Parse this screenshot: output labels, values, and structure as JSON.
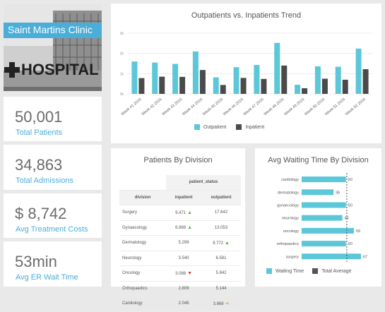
{
  "clinic": {
    "name": "Saint Martins Clinic",
    "sign": "HOSPITAL"
  },
  "kpis": [
    {
      "value": "50,001",
      "label": "Total Patients"
    },
    {
      "value": "34,863",
      "label": "Total Admissions"
    },
    {
      "value": "$ 8,742",
      "label": "Avg Treatment Costs"
    },
    {
      "value": "53min",
      "label": "Avg ER Wait Time"
    }
  ],
  "colors": {
    "outpatient": "#5bc7d8",
    "inpatient": "#4a4a4a",
    "accent": "#4aaed8"
  },
  "chart_data": [
    {
      "type": "bar",
      "title": "Outpatients vs. Inpatients Trend",
      "categories": [
        "Week 41 2016",
        "Week 42 2016",
        "Week 43 2016",
        "Week 44 2016",
        "Week 45 2016",
        "Week 46 2016",
        "Week 47 2016",
        "Week 48 2016",
        "Week 49 2016",
        "Week 50 2016",
        "Week 51 2016",
        "Week 52 2016"
      ],
      "series": [
        {
          "name": "Outpatient",
          "values": [
            1600,
            1550,
            1480,
            2100,
            820,
            1320,
            1430,
            2520,
            450,
            1360,
            1340,
            2240
          ]
        },
        {
          "name": "Inpatient",
          "values": [
            780,
            850,
            840,
            1180,
            440,
            790,
            740,
            1400,
            280,
            750,
            700,
            1220
          ]
        }
      ],
      "yticks": [
        "0k",
        "1k",
        "2k",
        "3k"
      ],
      "ylim": [
        0,
        3000
      ],
      "legend": "bottom"
    },
    {
      "type": "table",
      "title": "Patients By Division",
      "header_group": "patient_status",
      "columns": [
        "division",
        "inpatient",
        "outpatient"
      ],
      "rows": [
        {
          "division": "Surgery",
          "inpatient": "9.471",
          "in_arrow": "up",
          "outpatient": "17.642",
          "out_arrow": ""
        },
        {
          "division": "Gynaecology",
          "inpatient": "6.869",
          "in_arrow": "up",
          "outpatient": "13.053",
          "out_arrow": ""
        },
        {
          "division": "Dermatology",
          "inpatient": "5.299",
          "in_arrow": "",
          "outpatient": "9.772",
          "out_arrow": "up"
        },
        {
          "division": "Neurology",
          "inpatient": "3.540",
          "in_arrow": "",
          "outpatient": "6.581",
          "out_arrow": ""
        },
        {
          "division": "Oncology",
          "inpatient": "3.088",
          "in_arrow": "down",
          "outpatient": "5.842",
          "out_arrow": ""
        },
        {
          "division": "Orthopaedics",
          "inpatient": "2.809",
          "in_arrow": "",
          "outpatient": "5.144",
          "out_arrow": ""
        },
        {
          "division": "Cardiology",
          "inpatient": "2.046",
          "in_arrow": "",
          "outpatient": "3.868",
          "out_arrow": "right"
        }
      ]
    },
    {
      "type": "bar",
      "orientation": "horizontal",
      "title": "Avg Waiting Time By Division",
      "categories": [
        "cardiology",
        "dermatology",
        "gynaecology",
        "neurology",
        "oncology",
        "orthopaedics",
        "surgery"
      ],
      "series": [
        {
          "name": "Waiting Time",
          "values": [
            50,
            36,
            50,
            46,
            59,
            50,
            67
          ]
        }
      ],
      "reference_line": {
        "name": "Total Average",
        "value": 51
      },
      "xlim": [
        0,
        75
      ],
      "legend": "bottom"
    }
  ]
}
